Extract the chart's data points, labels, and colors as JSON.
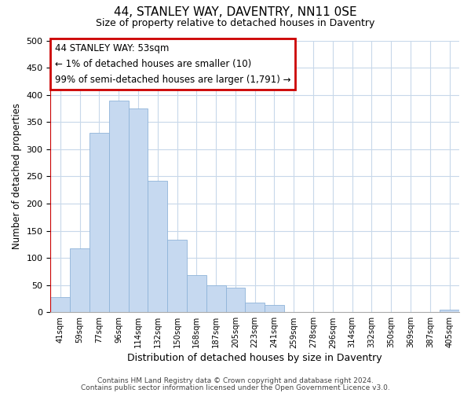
{
  "title": "44, STANLEY WAY, DAVENTRY, NN11 0SE",
  "subtitle": "Size of property relative to detached houses in Daventry",
  "xlabel": "Distribution of detached houses by size in Daventry",
  "ylabel": "Number of detached properties",
  "categories": [
    "41sqm",
    "59sqm",
    "77sqm",
    "96sqm",
    "114sqm",
    "132sqm",
    "150sqm",
    "168sqm",
    "187sqm",
    "205sqm",
    "223sqm",
    "241sqm",
    "259sqm",
    "278sqm",
    "296sqm",
    "314sqm",
    "332sqm",
    "350sqm",
    "369sqm",
    "387sqm",
    "405sqm"
  ],
  "values": [
    28,
    117,
    330,
    390,
    375,
    242,
    133,
    68,
    50,
    45,
    18,
    13,
    0,
    0,
    0,
    0,
    0,
    0,
    0,
    0,
    5
  ],
  "bar_color": "#c6d9f0",
  "bar_edge_color": "#8fb4d9",
  "highlight_index": 0,
  "highlight_line_color": "#cc0000",
  "annotation_title": "44 STANLEY WAY: 53sqm",
  "annotation_line1": "← 1% of detached houses are smaller (10)",
  "annotation_line2": "99% of semi-detached houses are larger (1,791) →",
  "annotation_box_color": "#ffffff",
  "annotation_box_edge": "#cc0000",
  "ylim": [
    0,
    500
  ],
  "yticks": [
    0,
    50,
    100,
    150,
    200,
    250,
    300,
    350,
    400,
    450,
    500
  ],
  "footer1": "Contains HM Land Registry data © Crown copyright and database right 2024.",
  "footer2": "Contains public sector information licensed under the Open Government Licence v3.0.",
  "background_color": "#ffffff",
  "grid_color": "#c8d8ea"
}
